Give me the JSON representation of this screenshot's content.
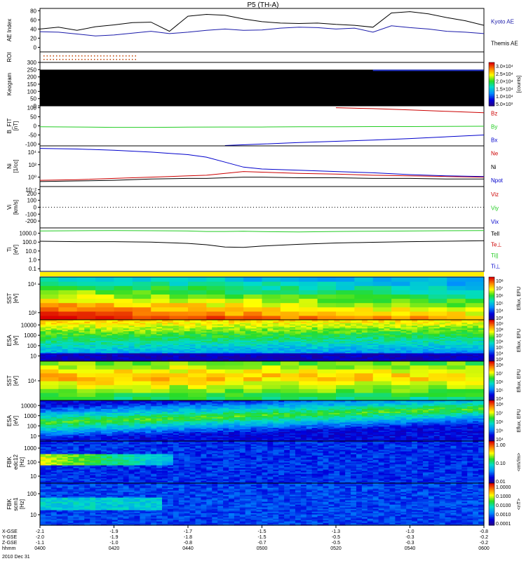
{
  "title": "P5 (TH-A)",
  "colors": {
    "kyoto": "#1a1aaa",
    "themis": "#000000",
    "red": "#cc0000",
    "green": "#22cc22",
    "blue": "#0000cc"
  },
  "chart_data": [
    {
      "id": "ae",
      "type": "line",
      "ylabel": "AE Index",
      "ylim": [
        -10,
        85
      ],
      "ticks": [
        "80",
        "60",
        "40",
        "20",
        "0"
      ],
      "tick_values": [
        80,
        60,
        40,
        20,
        0
      ],
      "legend": [
        "Kyoto AE",
        "Themis AE"
      ],
      "x": [
        0,
        5,
        10,
        15,
        20,
        25,
        30,
        35,
        40,
        45,
        50,
        55,
        60,
        65,
        70,
        75,
        80,
        85,
        90,
        95,
        100,
        105,
        110,
        115,
        120
      ],
      "series": [
        {
          "name": "Kyoto AE",
          "values": [
            34,
            33,
            29,
            25,
            27,
            31,
            35,
            30,
            33,
            37,
            40,
            37,
            38,
            42,
            44,
            43,
            40,
            42,
            33,
            47,
            43,
            40,
            35,
            33,
            30
          ]
        },
        {
          "name": "Themis AE",
          "values": [
            40,
            44,
            37,
            45,
            49,
            54,
            55,
            35,
            68,
            72,
            70,
            62,
            56,
            53,
            52,
            53,
            50,
            48,
            44,
            75,
            78,
            73,
            65,
            58,
            48
          ]
        }
      ]
    },
    {
      "id": "roi",
      "type": "scatter",
      "ylabel": "ROI"
    },
    {
      "id": "keogram",
      "type": "heatmap",
      "ylabel": "Keogram",
      "ticks": [
        "300",
        "250",
        "200",
        "150",
        "100",
        "50",
        "0"
      ],
      "tick_values": [
        300,
        250,
        200,
        150,
        100,
        50,
        0
      ],
      "ylim": [
        0,
        300
      ],
      "colorbar": {
        "label": "[counts]",
        "ticks": [
          "3.0×10⁴",
          "2.5×10⁴",
          "2.0×10⁴",
          "1.5×10⁴",
          "1.0×10⁴",
          "5.0×10³"
        ]
      }
    },
    {
      "id": "bfield",
      "type": "line",
      "ylabel": "B_FIT\n[nT]",
      "ylim": [
        -110,
        110
      ],
      "ticks": [
        "100",
        "50",
        "0",
        "-50",
        "-100"
      ],
      "tick_values": [
        100,
        50,
        0,
        -50,
        -100
      ],
      "legend": [
        "Bz",
        "By",
        "Bx"
      ],
      "x": [
        0,
        10,
        20,
        30,
        40,
        50,
        60,
        70,
        80,
        90,
        100,
        110,
        120
      ],
      "series": [
        {
          "name": "Bz",
          "values": [
            null,
            null,
            null,
            null,
            null,
            null,
            null,
            null,
            100,
            95,
            88,
            80,
            72
          ]
        },
        {
          "name": "By",
          "values": [
            -5,
            -6,
            -8,
            -8,
            -7,
            -6,
            -6,
            -5,
            -5,
            -4,
            -4,
            -3,
            -2
          ]
        },
        {
          "name": "Bx",
          "values": [
            null,
            null,
            null,
            null,
            null,
            -108,
            -100,
            -92,
            -85,
            -78,
            -70,
            -60,
            -50
          ]
        }
      ]
    },
    {
      "id": "density",
      "type": "line",
      "ylabel": "Ni\n[1/cc]",
      "scale": "log",
      "ylim": [
        -1.5,
        5
      ],
      "ticks": [
        "10⁴",
        "10²",
        "10⁰",
        "10⁻²"
      ],
      "tick_values": [
        4,
        2,
        0,
        -2
      ],
      "legend": [
        "Ne",
        "Ni",
        "Npot"
      ],
      "x": [
        0,
        10,
        20,
        30,
        40,
        45,
        50,
        55,
        60,
        70,
        80,
        90,
        100,
        110,
        120
      ],
      "series": [
        {
          "name": "Ne",
          "values": [
            -0.5,
            -0.4,
            -0.2,
            0,
            0.2,
            0.3,
            0.6,
            0.9,
            0.8,
            0.6,
            0.5,
            0.3,
            0.2,
            0.1,
            0
          ]
        },
        {
          "name": "Ni",
          "values": [
            -0.7,
            -0.6,
            -0.5,
            -0.3,
            -0.2,
            -0.2,
            -0.1,
            0,
            0,
            -0.1,
            -0.1,
            -0.2,
            -0.2,
            -0.3,
            -0.3
          ]
        },
        {
          "name": "Npot",
          "values": [
            4.6,
            4.5,
            4.3,
            4.0,
            3.6,
            3.2,
            2.4,
            1.6,
            1.3,
            1.1,
            0.9,
            0.7,
            0.4,
            0.2,
            0.1
          ]
        }
      ]
    },
    {
      "id": "velocity",
      "type": "line",
      "ylabel": "Vi\n[km/s]",
      "ylim": [
        -300,
        300
      ],
      "ticks": [
        "200",
        "100",
        "0",
        "-100",
        "-200"
      ],
      "tick_values": [
        200,
        100,
        0,
        -100,
        -200
      ],
      "legend": [
        "Viz",
        "Viy",
        "Vix"
      ]
    },
    {
      "id": "temperature",
      "type": "line",
      "ylabel": "Ti\n[eV]",
      "scale": "log",
      "ylim": [
        -1.3,
        3.6
      ],
      "ticks": [
        "1000.0",
        "100.0",
        "10.0",
        "1.0",
        "0.1"
      ],
      "tick_values": [
        3,
        2,
        1,
        0,
        -1
      ],
      "legend": [
        "Tell",
        "Te⊥",
        "Ti||",
        "Ti⊥"
      ],
      "x": [
        0,
        10,
        20,
        30,
        40,
        45,
        50,
        55,
        60,
        70,
        80,
        90,
        100,
        110,
        120
      ],
      "series": [
        {
          "name": "Tell",
          "values": [
            3.25,
            3.28,
            3.3,
            3.28,
            3.25,
            3.2,
            3.2,
            3.22,
            3.18,
            3.15,
            3.2,
            3.22,
            3.25,
            3.28,
            3.3
          ]
        },
        {
          "name": "Ti⊥",
          "values": [
            2.1,
            2.05,
            2.05,
            2.0,
            1.85,
            1.7,
            1.45,
            1.4,
            1.55,
            1.75,
            1.9,
            1.98,
            2.05,
            2.1,
            2.15
          ]
        }
      ]
    },
    {
      "id": "sst_e",
      "type": "heatmap",
      "ylabel": "SST\n[eV]",
      "ticks": [
        "10⁴",
        "10²"
      ],
      "tick_values": [
        4,
        2
      ],
      "colorbar": {
        "label": "Eflux, EFU",
        "ticks": [
          "10⁸",
          "10⁷",
          "10⁶",
          "10⁵",
          "10⁴",
          "10³"
        ]
      }
    },
    {
      "id": "esa_e",
      "type": "heatmap",
      "ylabel": "ESA\n[eV]",
      "ticks": [
        "10000",
        "1000",
        "100",
        "10"
      ],
      "tick_values": [
        4,
        3,
        2,
        1
      ],
      "colorbar": {
        "label": "Eflux, EFU",
        "ticks": [
          "10⁹",
          "10⁸",
          "10⁷",
          "10⁶",
          "10⁵",
          "10⁴",
          "10³"
        ]
      }
    },
    {
      "id": "sst_i",
      "type": "heatmap",
      "ylabel": "SST\n[eV]",
      "ticks": [
        "10⁴"
      ],
      "tick_values": [
        4
      ],
      "colorbar": {
        "label": "Eflux, EFU",
        "ticks": [
          "10⁸",
          "10⁷",
          "10⁶",
          "10⁵",
          "10⁴"
        ]
      }
    },
    {
      "id": "esa_i",
      "type": "heatmap",
      "ylabel": "ESA\n[eV]",
      "ticks": [
        "10000",
        "1000",
        "100",
        "10"
      ],
      "tick_values": [
        4,
        3,
        2,
        1
      ],
      "colorbar": {
        "label": "Eflux, EFU",
        "ticks": [
          "10⁸",
          "10⁷",
          "10⁶",
          "10⁵",
          "10⁴"
        ]
      }
    },
    {
      "id": "fbk_edc",
      "type": "heatmap",
      "ylabel": "FBK\nedc12\n[Hz]",
      "ticks": [
        "1000",
        "100",
        "10"
      ],
      "tick_values": [
        3,
        2,
        1
      ],
      "colorbar": {
        "label": "<mV/m>",
        "ticks": [
          "1.00",
          "0.10",
          "0.01"
        ]
      }
    },
    {
      "id": "fbk_scm",
      "type": "heatmap",
      "ylabel": "FBK\nscm1\n[Hz]",
      "ticks": [
        "100",
        "10"
      ],
      "tick_values": [
        2,
        1
      ],
      "colorbar": {
        "label": "<nT>",
        "ticks": [
          "1.0000",
          "0.1000",
          "0.0100",
          "0.0010",
          "0.0001"
        ]
      }
    }
  ],
  "xaxis": {
    "row_labels": [
      "X-GSE",
      "Y-GSE",
      "Z-GSE",
      "hhmm"
    ],
    "columns": [
      {
        "vals": [
          "-2.1",
          "-2.0",
          "-1.1",
          "0400"
        ]
      },
      {
        "vals": [
          "-1.9",
          "-1.9",
          "-1.0",
          "0420"
        ]
      },
      {
        "vals": [
          "-1.7",
          "-1.8",
          "-0.8",
          "0440"
        ]
      },
      {
        "vals": [
          "-1.5",
          "-1.5",
          "-0.7",
          "0500"
        ]
      },
      {
        "vals": [
          "-1.3",
          "-0.5",
          "-0.5",
          "0520"
        ]
      },
      {
        "vals": [
          "-1.0",
          "-0.3",
          "-0.3",
          "0540"
        ]
      },
      {
        "vals": [
          "-0.8",
          "-0.2",
          "-0.2",
          "0600"
        ]
      }
    ],
    "date": "2010 Dec 31"
  }
}
